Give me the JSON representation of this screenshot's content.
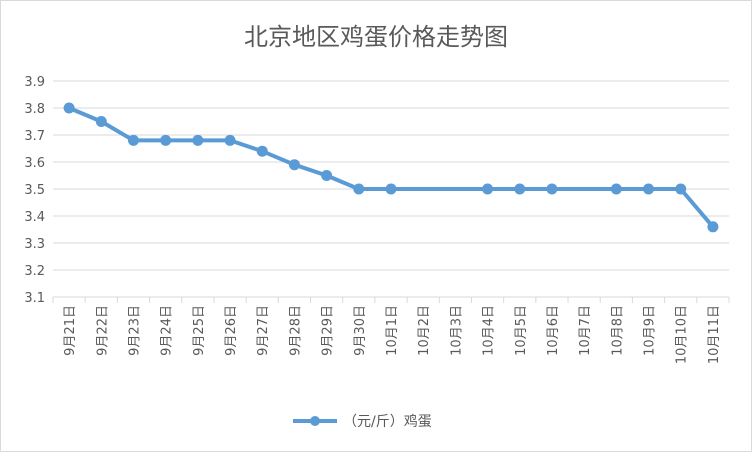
{
  "chart_data": {
    "type": "line",
    "title": "北京地区鸡蛋价格走势图",
    "xlabel": "",
    "ylabel": "",
    "categories": [
      "9月21日",
      "9月22日",
      "9月23日",
      "9月24日",
      "9月25日",
      "9月26日",
      "9月27日",
      "9月28日",
      "9月29日",
      "9月30日",
      "10月1日",
      "10月2日",
      "10月3日",
      "10月4日",
      "10月5日",
      "10月6日",
      "10月7日",
      "10月8日",
      "10月9日",
      "10月10日",
      "10月11日"
    ],
    "series": [
      {
        "name": "（元/斤）鸡蛋",
        "values": [
          3.8,
          3.75,
          3.68,
          3.68,
          3.68,
          3.68,
          3.64,
          3.59,
          3.55,
          3.5,
          3.5,
          null,
          null,
          3.5,
          3.5,
          3.5,
          null,
          3.5,
          3.5,
          3.5,
          3.36
        ],
        "color": "#5b9bd5"
      }
    ],
    "ylim": [
      3.1,
      3.9
    ],
    "yticks": [
      "3.1",
      "3.2",
      "3.3",
      "3.4",
      "3.5",
      "3.6",
      "3.7",
      "3.8",
      "3.9"
    ],
    "grid": true,
    "legend": "bottom",
    "colors": {
      "grid": "#d9d9d9",
      "text": "#595959",
      "line": "#5b9bd5"
    }
  }
}
